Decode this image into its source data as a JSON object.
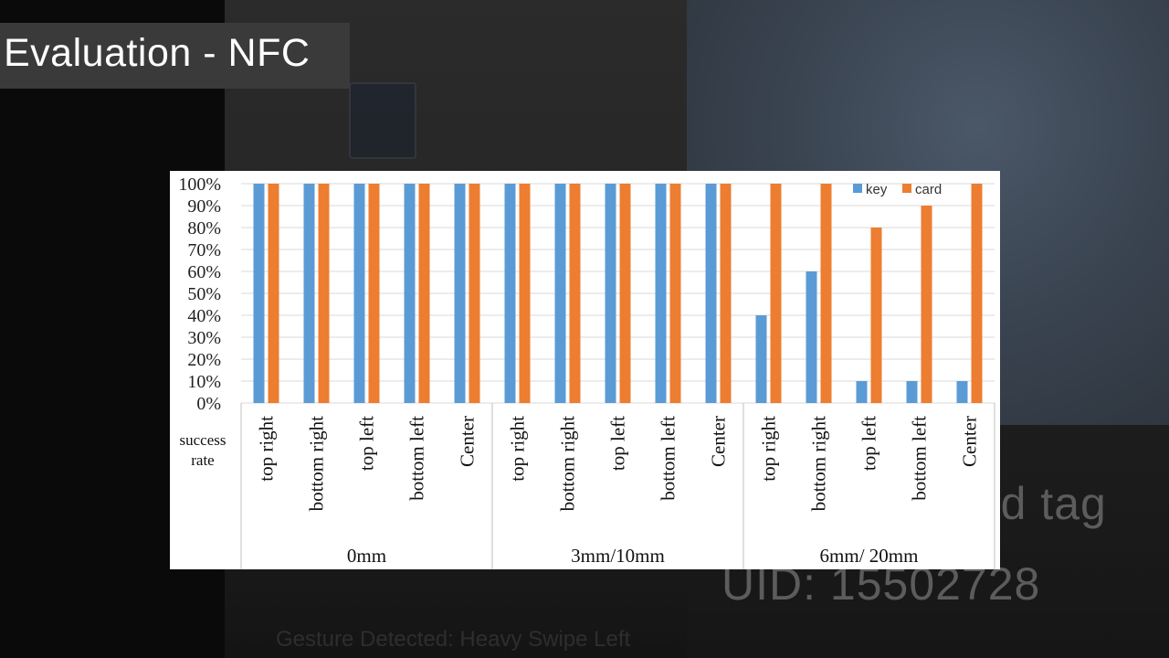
{
  "slide": {
    "title": "Evaluation - NFC"
  },
  "background": {
    "text_tag": "rd tag",
    "text_uid": "UID: 15502728",
    "text_gesture": "Gesture Detected: Heavy Swipe Left"
  },
  "colors": {
    "key": "#5B9BD5",
    "card": "#ED7D31"
  },
  "chart_data": {
    "type": "bar",
    "categories": [
      "top right",
      "bottom right",
      "top left",
      "bottom left",
      "Center",
      "top right",
      "bottom right",
      "top left",
      "bottom left",
      "Center",
      "top right",
      "bottom right",
      "top left",
      "bottom left",
      "Center"
    ],
    "groups": [
      "0mm",
      "3mm/10mm",
      "6mm/ 20mm"
    ],
    "series": [
      {
        "name": "key",
        "values": [
          100,
          100,
          100,
          100,
          100,
          100,
          100,
          100,
          100,
          100,
          40,
          60,
          10,
          10,
          10
        ]
      },
      {
        "name": "card",
        "values": [
          100,
          100,
          100,
          100,
          100,
          100,
          100,
          100,
          100,
          100,
          100,
          100,
          80,
          90,
          100
        ]
      }
    ],
    "yticks": [
      "0%",
      "10%",
      "20%",
      "30%",
      "40%",
      "50%",
      "60%",
      "70%",
      "80%",
      "90%",
      "100%"
    ],
    "ylim": [
      0,
      100
    ],
    "row_label": "success rate",
    "legend_position": "top-right",
    "grid": true
  }
}
